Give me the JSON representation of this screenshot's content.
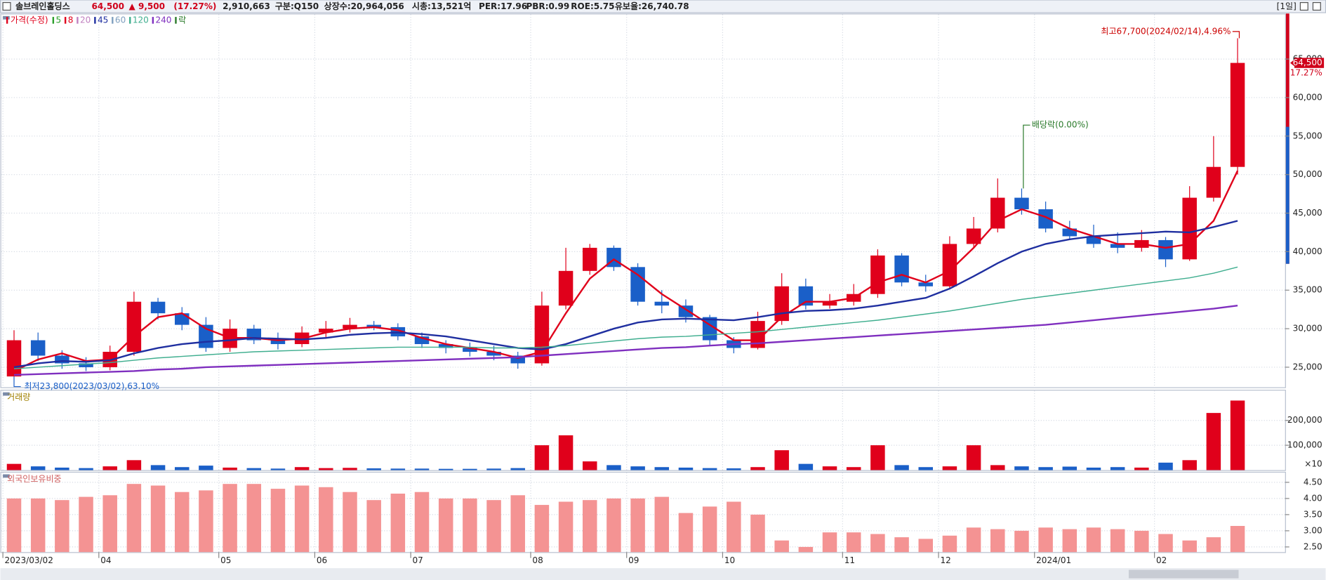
{
  "header": {
    "name": "솔브레인홀딩스",
    "price": "64,500",
    "change": "▲ 9,500",
    "change_pct": "(17.27%)",
    "volume": "2,910,663",
    "market": "구분:Q150",
    "shares": "상장수:20,964,056",
    "cap": "시총:13,521억",
    "per": "PER:17.96",
    "pbr": "PBR:0.99",
    "roe": "ROE:5.75",
    "reserve": "유보율:26,740.78",
    "period": "[1일]"
  },
  "chart_data": {
    "type": "candlestick",
    "title": "가격(수정)",
    "categories": [
      "2023/03/02",
      null,
      null,
      null,
      "04",
      null,
      null,
      null,
      null,
      "05",
      null,
      null,
      null,
      "06",
      null,
      null,
      null,
      "07",
      null,
      null,
      null,
      null,
      "08",
      null,
      null,
      null,
      "09",
      null,
      null,
      null,
      "10",
      null,
      null,
      null,
      null,
      "11",
      null,
      null,
      null,
      "12",
      null,
      null,
      null,
      "2024/01",
      null,
      null,
      null,
      null,
      "02",
      null,
      null,
      null
    ],
    "open": [
      23800,
      28500,
      26500,
      25500,
      25000,
      27000,
      33500,
      32000,
      30500,
      27500,
      30000,
      28500,
      28000,
      29500,
      30000,
      30500,
      30200,
      29000,
      28000,
      27500,
      27000,
      26500,
      25500,
      33000,
      37500,
      40500,
      38000,
      33500,
      33000,
      31500,
      28500,
      27500,
      31000,
      35500,
      33000,
      33500,
      34500,
      39500,
      36000,
      35500,
      41000,
      43000,
      47000,
      45500,
      43000,
      42000,
      41000,
      40500,
      41500,
      39000,
      47000,
      51000
    ],
    "high": [
      29800,
      29500,
      27200,
      26300,
      27800,
      34800,
      34000,
      32800,
      31500,
      31200,
      30500,
      29500,
      30300,
      31000,
      31400,
      31000,
      30700,
      29500,
      28500,
      28200,
      27800,
      27000,
      34800,
      40500,
      41000,
      40800,
      38500,
      35000,
      33800,
      31800,
      28900,
      32200,
      37200,
      36500,
      34500,
      35800,
      40300,
      39800,
      37000,
      42000,
      44500,
      49500,
      48200,
      46500,
      44000,
      43500,
      42500,
      42800,
      41900,
      48500,
      55000,
      67700
    ],
    "low": [
      23800,
      25800,
      24800,
      24500,
      24600,
      26500,
      31200,
      29800,
      27000,
      27000,
      28000,
      27300,
      27600,
      28900,
      29500,
      29800,
      28500,
      27500,
      26800,
      26400,
      25900,
      24800,
      25200,
      32500,
      37000,
      37500,
      33000,
      32000,
      30800,
      27800,
      26800,
      27300,
      30500,
      32500,
      32600,
      33000,
      34000,
      35500,
      34800,
      35200,
      40500,
      42500,
      44800,
      42500,
      41500,
      40500,
      39800,
      40000,
      38000,
      38800,
      46500,
      50000
    ],
    "close": [
      28500,
      26500,
      25500,
      25000,
      27000,
      33500,
      32000,
      30500,
      27500,
      30000,
      28500,
      28000,
      29500,
      30000,
      30500,
      30200,
      29000,
      28000,
      27500,
      27000,
      26500,
      25500,
      33000,
      37500,
      40500,
      38000,
      33500,
      33000,
      31500,
      28500,
      27500,
      31000,
      35500,
      33000,
      33500,
      34500,
      39500,
      36000,
      35500,
      41000,
      43000,
      47000,
      45500,
      43000,
      42000,
      41000,
      40500,
      41500,
      39000,
      47000,
      51000,
      64500
    ],
    "up_color": "#e0001b",
    "down_color": "#1a5fc8",
    "series": [
      {
        "name": "5",
        "color": "#2ca02c"
      },
      {
        "name": "8",
        "color": "#e0001b",
        "values": [
          24500,
          26000,
          26800,
          25800,
          26000,
          29000,
          31500,
          32000,
          30000,
          28800,
          28800,
          28500,
          28700,
          29500,
          30000,
          30200,
          29800,
          28800,
          28000,
          27500,
          27000,
          26200,
          27000,
          32000,
          36500,
          39000,
          37000,
          34500,
          32500,
          30500,
          28500,
          28500,
          31500,
          33500,
          33500,
          34000,
          36000,
          37000,
          36000,
          37500,
          40500,
          44000,
          45500,
          44500,
          43000,
          42000,
          41000,
          41000,
          40500,
          41000,
          44000,
          50500
        ]
      },
      {
        "name": "20",
        "color": "#c080c0"
      },
      {
        "name": "45",
        "color": "#1f2fa0",
        "values": [
          25000,
          25500,
          25800,
          25700,
          25900,
          26800,
          27500,
          28000,
          28300,
          28500,
          28800,
          28700,
          28600,
          28800,
          29200,
          29400,
          29500,
          29300,
          29000,
          28500,
          28000,
          27500,
          27300,
          28000,
          29000,
          30000,
          30800,
          31200,
          31300,
          31200,
          31100,
          31500,
          32000,
          32300,
          32400,
          32600,
          33000,
          33500,
          34000,
          35200,
          36800,
          38500,
          40000,
          41000,
          41600,
          42000,
          42200,
          42400,
          42600,
          42500,
          43200,
          44000
        ]
      },
      {
        "name": "60",
        "color": "#7f9fbf"
      },
      {
        "name": "120",
        "color": "#3fae8f",
        "values": [
          24800,
          25000,
          25200,
          25400,
          25600,
          25900,
          26200,
          26400,
          26600,
          26800,
          27000,
          27100,
          27200,
          27300,
          27400,
          27500,
          27600,
          27600,
          27600,
          27600,
          27500,
          27500,
          27600,
          27800,
          28100,
          28400,
          28700,
          28900,
          29000,
          29200,
          29400,
          29600,
          29900,
          30200,
          30500,
          30800,
          31100,
          31500,
          31900,
          32300,
          32800,
          33300,
          33800,
          34200,
          34600,
          35000,
          35400,
          35800,
          36200,
          36600,
          37200,
          38000
        ]
      },
      {
        "name": "240",
        "color": "#7f2fbf",
        "values": [
          24000,
          24100,
          24200,
          24300,
          24400,
          24500,
          24700,
          24800,
          25000,
          25100,
          25200,
          25300,
          25400,
          25500,
          25600,
          25700,
          25800,
          25900,
          26000,
          26100,
          26200,
          26300,
          26500,
          26700,
          26900,
          27100,
          27300,
          27500,
          27600,
          27800,
          28000,
          28100,
          28300,
          28500,
          28700,
          28900,
          29100,
          29300,
          29500,
          29700,
          29900,
          30100,
          30300,
          30500,
          30800,
          31100,
          31400,
          31700,
          32000,
          32300,
          32600,
          33000
        ]
      }
    ],
    "legend_extra": {
      "name": "락",
      "color": "#2a7a2a"
    },
    "ylim": [
      22400,
      70800
    ],
    "yticks": [
      {
        "value": 25000,
        "label": "25,000"
      },
      {
        "value": 30000,
        "label": "30,000"
      },
      {
        "value": 35000,
        "label": "35,000"
      },
      {
        "value": 40000,
        "label": "40,000"
      },
      {
        "value": 45000,
        "label": "45,000"
      },
      {
        "value": 50000,
        "label": "50,000"
      },
      {
        "value": 55000,
        "label": "55,000"
      },
      {
        "value": 60000,
        "label": "60,000"
      },
      {
        "value": 65000,
        "label": "65,000"
      }
    ],
    "price_tag": "64,500",
    "price_tag_pct": "17.27%",
    "annotation_high": "최고67,700(2024/02/14),4.96%",
    "annotation_low": "최저23,800(2023/03/02),63.10%",
    "annotation_dividend": "배당락(0.00%)",
    "volume": {
      "title": "거래량",
      "unit": "×10",
      "values": [
        25000,
        15000,
        10000,
        8000,
        15000,
        40000,
        20000,
        12000,
        18000,
        10000,
        8000,
        6000,
        12000,
        8000,
        9000,
        7000,
        6000,
        6000,
        5000,
        5000,
        6000,
        8000,
        100000,
        140000,
        35000,
        20000,
        15000,
        12000,
        10000,
        8000,
        7000,
        12000,
        80000,
        25000,
        15000,
        12000,
        100000,
        20000,
        12000,
        15000,
        100000,
        20000,
        15000,
        12000,
        14000,
        10000,
        12000,
        10000,
        30000,
        40000,
        230000,
        280000
      ],
      "ylim": [
        0,
        320000
      ],
      "yticks": [
        {
          "value": 100000,
          "label": "100,000"
        },
        {
          "value": 200000,
          "label": "200,000"
        }
      ]
    },
    "foreign": {
      "title": "외국인보유비중",
      "color": "#f49393",
      "values": [
        4.0,
        4.0,
        3.95,
        4.05,
        4.1,
        4.45,
        4.4,
        4.2,
        4.25,
        4.45,
        4.45,
        4.3,
        4.4,
        4.35,
        4.2,
        3.95,
        4.15,
        4.2,
        4.0,
        4.0,
        3.95,
        4.1,
        3.8,
        3.9,
        3.95,
        4.0,
        4.0,
        4.05,
        3.55,
        3.75,
        3.9,
        3.5,
        2.7,
        2.5,
        2.95,
        2.95,
        2.9,
        2.8,
        2.75,
        2.85,
        3.1,
        3.05,
        3.0,
        3.1,
        3.05,
        3.1,
        3.05,
        3.0,
        2.9,
        2.7,
        2.8,
        3.15
      ],
      "ylim": [
        2.34,
        4.8
      ],
      "yticks": [
        {
          "value": 2.5,
          "label": "2.50"
        },
        {
          "value": 3.0,
          "label": "3.00"
        },
        {
          "value": 3.5,
          "label": "3.50"
        },
        {
          "value": 4.0,
          "label": "4.00"
        },
        {
          "value": 4.5,
          "label": "4.50"
        }
      ]
    }
  }
}
